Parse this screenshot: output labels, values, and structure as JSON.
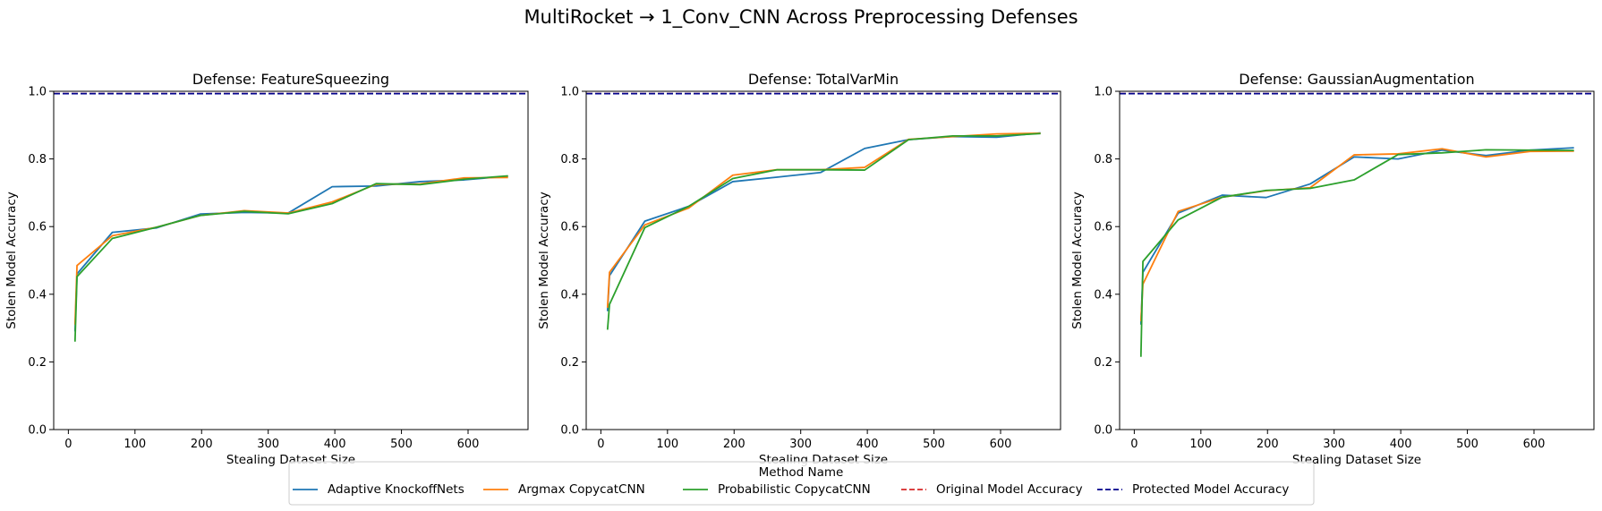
{
  "figure_title": "MultiRocket → 1_Conv_CNN Across Preprocessing Defenses",
  "legend": {
    "title": "Method Name",
    "entries": [
      {
        "label": "Adaptive KnockoffNets",
        "color": "#1f77b4",
        "style": "solid"
      },
      {
        "label": "Argmax CopycatCNN",
        "color": "#ff7f0e",
        "style": "solid"
      },
      {
        "label": "Probabilistic CopycatCNN",
        "color": "#2ca02c",
        "style": "solid"
      },
      {
        "label": "Original Model Accuracy",
        "color": "#d62728",
        "style": "dashed"
      },
      {
        "label": "Protected Model Accuracy",
        "color": "#00008b",
        "style": "dashed"
      }
    ]
  },
  "chart_data": [
    {
      "type": "line",
      "title": "Defense: FeatureSqueezing",
      "xlabel": "Stealing Dataset Size",
      "ylabel": "Stolen Model Accuracy",
      "xlim": [
        -22,
        690
      ],
      "ylim": [
        0,
        1.0
      ],
      "xticks": [
        0,
        100,
        200,
        300,
        400,
        500,
        600
      ],
      "yticks": [
        0.0,
        0.2,
        0.4,
        0.6,
        0.8,
        1.0
      ],
      "x": [
        10,
        13,
        66,
        132,
        198,
        264,
        330,
        396,
        462,
        528,
        594,
        660
      ],
      "series": [
        {
          "name": "Adaptive KnockoffNets",
          "values": [
            0.29,
            0.46,
            0.583,
            0.596,
            0.637,
            0.642,
            0.64,
            0.718,
            0.72,
            0.733,
            0.738,
            0.749
          ]
        },
        {
          "name": "Argmax CopycatCNN",
          "values": [
            0.31,
            0.485,
            0.573,
            0.598,
            0.633,
            0.647,
            0.64,
            0.673,
            0.725,
            0.726,
            0.744,
            0.745
          ]
        },
        {
          "name": "Probabilistic CopycatCNN",
          "values": [
            0.26,
            0.452,
            0.565,
            0.598,
            0.633,
            0.645,
            0.638,
            0.668,
            0.727,
            0.724,
            0.74,
            0.75
          ]
        }
      ],
      "hlines": [
        {
          "name": "Original Model Accuracy",
          "y": 0.993
        },
        {
          "name": "Protected Model Accuracy",
          "y": 0.993
        }
      ]
    },
    {
      "type": "line",
      "title": "Defense: TotalVarMin",
      "xlabel": "Stealing Dataset Size",
      "ylabel": "Stolen Model Accuracy",
      "xlim": [
        -22,
        690
      ],
      "ylim": [
        0,
        1.0
      ],
      "xticks": [
        0,
        100,
        200,
        300,
        400,
        500,
        600
      ],
      "yticks": [
        0.0,
        0.2,
        0.4,
        0.6,
        0.8,
        1.0
      ],
      "x": [
        10,
        13,
        66,
        132,
        198,
        264,
        330,
        396,
        462,
        528,
        594,
        660
      ],
      "series": [
        {
          "name": "Adaptive KnockoffNets",
          "values": [
            0.35,
            0.455,
            0.616,
            0.66,
            0.733,
            0.746,
            0.76,
            0.831,
            0.857,
            0.866,
            0.864,
            0.877
          ]
        },
        {
          "name": "Argmax CopycatCNN",
          "values": [
            0.36,
            0.465,
            0.605,
            0.655,
            0.752,
            0.768,
            0.768,
            0.775,
            0.858,
            0.866,
            0.874,
            0.876
          ]
        },
        {
          "name": "Probabilistic CopycatCNN",
          "values": [
            0.295,
            0.37,
            0.597,
            0.66,
            0.742,
            0.768,
            0.768,
            0.767,
            0.857,
            0.868,
            0.868,
            0.875
          ]
        }
      ],
      "hlines": [
        {
          "name": "Original Model Accuracy",
          "y": 0.993
        },
        {
          "name": "Protected Model Accuracy",
          "y": 0.993
        }
      ]
    },
    {
      "type": "line",
      "title": "Defense: GaussianAugmentation",
      "xlabel": "Stealing Dataset Size",
      "ylabel": "Stolen Model Accuracy",
      "xlim": [
        -22,
        690
      ],
      "ylim": [
        0,
        1.0
      ],
      "xticks": [
        0,
        100,
        200,
        300,
        400,
        500,
        600
      ],
      "yticks": [
        0.0,
        0.2,
        0.4,
        0.6,
        0.8,
        1.0
      ],
      "x": [
        10,
        13,
        66,
        132,
        198,
        264,
        330,
        396,
        462,
        528,
        594,
        660
      ],
      "series": [
        {
          "name": "Adaptive KnockoffNets",
          "values": [
            0.31,
            0.465,
            0.64,
            0.693,
            0.686,
            0.726,
            0.806,
            0.8,
            0.826,
            0.81,
            0.826,
            0.833
          ]
        },
        {
          "name": "Argmax CopycatCNN",
          "values": [
            0.32,
            0.43,
            0.645,
            0.687,
            0.706,
            0.715,
            0.812,
            0.815,
            0.83,
            0.806,
            0.822,
            0.823
          ]
        },
        {
          "name": "Probabilistic CopycatCNN",
          "values": [
            0.215,
            0.497,
            0.62,
            0.687,
            0.707,
            0.713,
            0.738,
            0.813,
            0.818,
            0.827,
            0.826,
            0.825
          ]
        }
      ],
      "hlines": [
        {
          "name": "Original Model Accuracy",
          "y": 0.993
        },
        {
          "name": "Protected Model Accuracy",
          "y": 0.993
        }
      ]
    }
  ]
}
